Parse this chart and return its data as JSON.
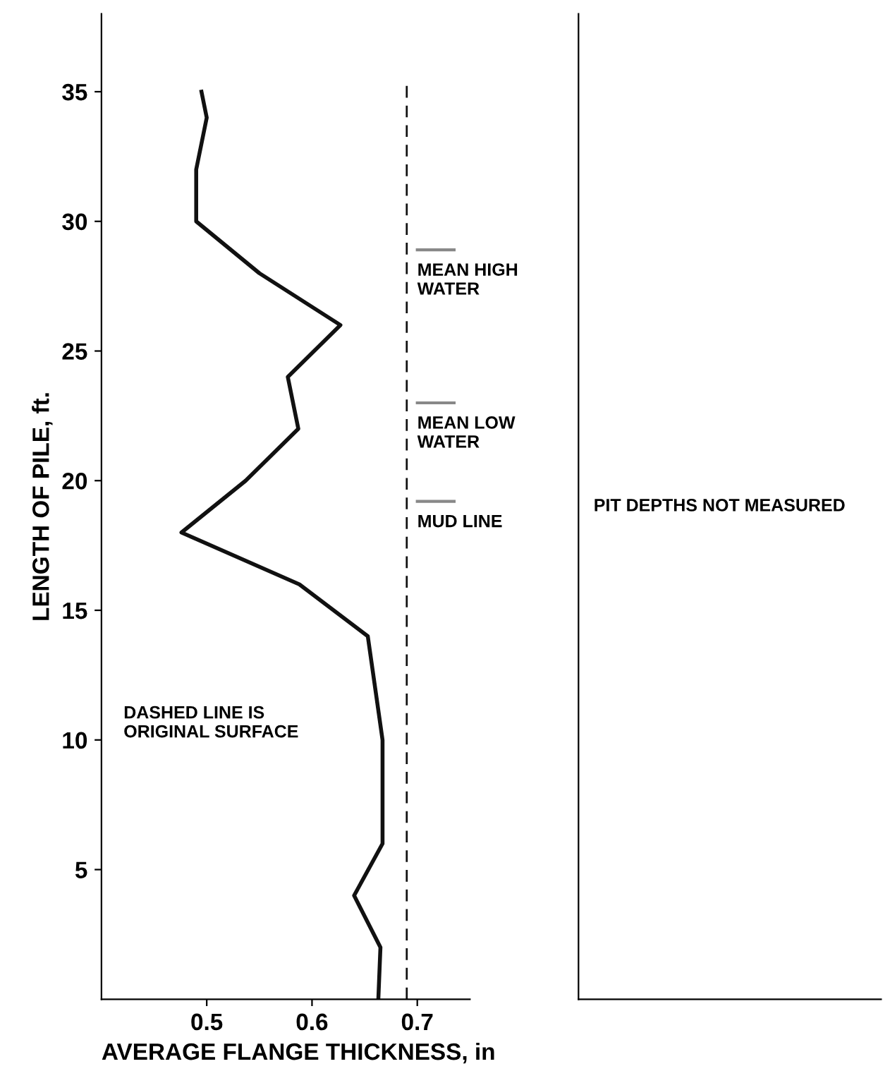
{
  "chart_data": [
    {
      "type": "line",
      "xlabel": "AVERAGE FLANGE THICKNESS, in",
      "ylabel": "LENGTH OF PILE, ft.",
      "series": [
        {
          "color": "#111111",
          "x": [
            0.495,
            0.5,
            0.49,
            0.49,
            0.55,
            0.627,
            0.577,
            0.587,
            0.537,
            0.476,
            0.588,
            0.653,
            0.667,
            0.667,
            0.64,
            0.665,
            0.663
          ],
          "values": [
            35,
            34,
            32,
            30,
            28,
            26,
            24,
            22,
            20,
            18,
            16,
            14,
            10,
            6,
            4,
            2,
            0
          ]
        }
      ],
      "xlim": [
        0.4,
        0.75
      ],
      "ylim": [
        0,
        38
      ],
      "xticks": [
        0.5,
        0.6,
        0.7
      ],
      "yticks": [
        5,
        10,
        15,
        20,
        25,
        30,
        35
      ],
      "ref_lines": [
        {
          "axis": "x",
          "value": 0.69,
          "line_style": "dashed",
          "color": "#111111"
        },
        {
          "axis": "y",
          "value": 28.9,
          "label": "MEAN HIGH\nWATER",
          "color": "#888888"
        },
        {
          "axis": "y",
          "value": 23,
          "label": "MEAN LOW\nWATER",
          "color": "#888888"
        },
        {
          "axis": "y",
          "value": 19.2,
          "label": "MUD LINE",
          "color": "#888888"
        }
      ],
      "annotations": [
        "DASHED LINE IS\nORIGINAL SURFACE"
      ],
      "grid": false
    },
    {
      "type": "other",
      "annotations": [
        "PIT DEPTHS NOT MEASURED"
      ]
    }
  ]
}
